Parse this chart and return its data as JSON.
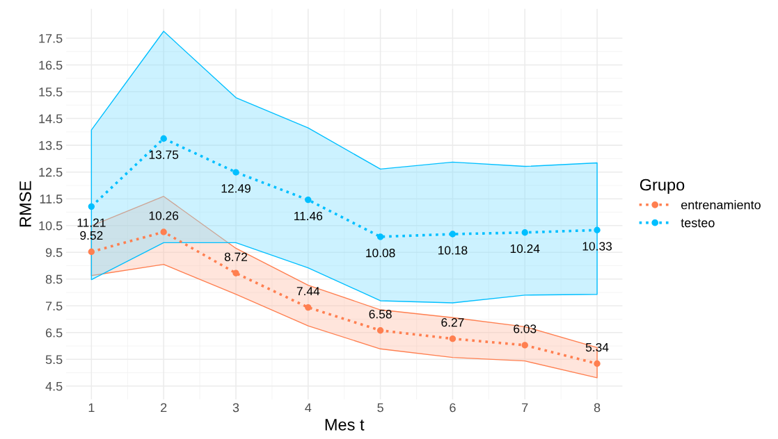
{
  "chart_data": {
    "type": "line",
    "xlabel": "Mes t",
    "ylabel": "RMSE",
    "legend_title": "Grupo",
    "legend": "right",
    "grid": true,
    "marker": "circle",
    "line_style": "dotted",
    "data_labels": true,
    "x": [
      1,
      2,
      3,
      4,
      5,
      6,
      7,
      8
    ],
    "xlim": [
      0.65,
      8.35
    ],
    "xticks": [
      1,
      2,
      3,
      4,
      5,
      6,
      7,
      8
    ],
    "ylim": [
      4.0,
      18.6
    ],
    "yticks": [
      4.5,
      5.5,
      6.5,
      7.5,
      8.5,
      9.5,
      10.5,
      11.5,
      12.5,
      13.5,
      14.5,
      15.5,
      16.5,
      17.5
    ],
    "series": [
      {
        "name": "entrenamiento",
        "color": "#ff7f50",
        "values": [
          9.52,
          10.26,
          8.72,
          7.44,
          6.58,
          6.27,
          6.03,
          5.34
        ],
        "lower": [
          8.63,
          9.05,
          7.93,
          6.75,
          5.89,
          5.57,
          5.44,
          4.81
        ],
        "upper": [
          10.49,
          11.59,
          9.65,
          8.27,
          7.35,
          7.06,
          6.72,
          5.94
        ]
      },
      {
        "name": "testeo",
        "color": "#00bfff",
        "values": [
          11.21,
          13.75,
          12.49,
          11.46,
          10.08,
          10.18,
          10.24,
          10.33
        ],
        "lower": [
          8.48,
          9.86,
          9.86,
          8.92,
          7.69,
          7.61,
          7.9,
          7.93
        ],
        "upper": [
          14.07,
          17.76,
          15.28,
          14.15,
          12.61,
          12.87,
          12.71,
          12.84
        ]
      }
    ]
  }
}
